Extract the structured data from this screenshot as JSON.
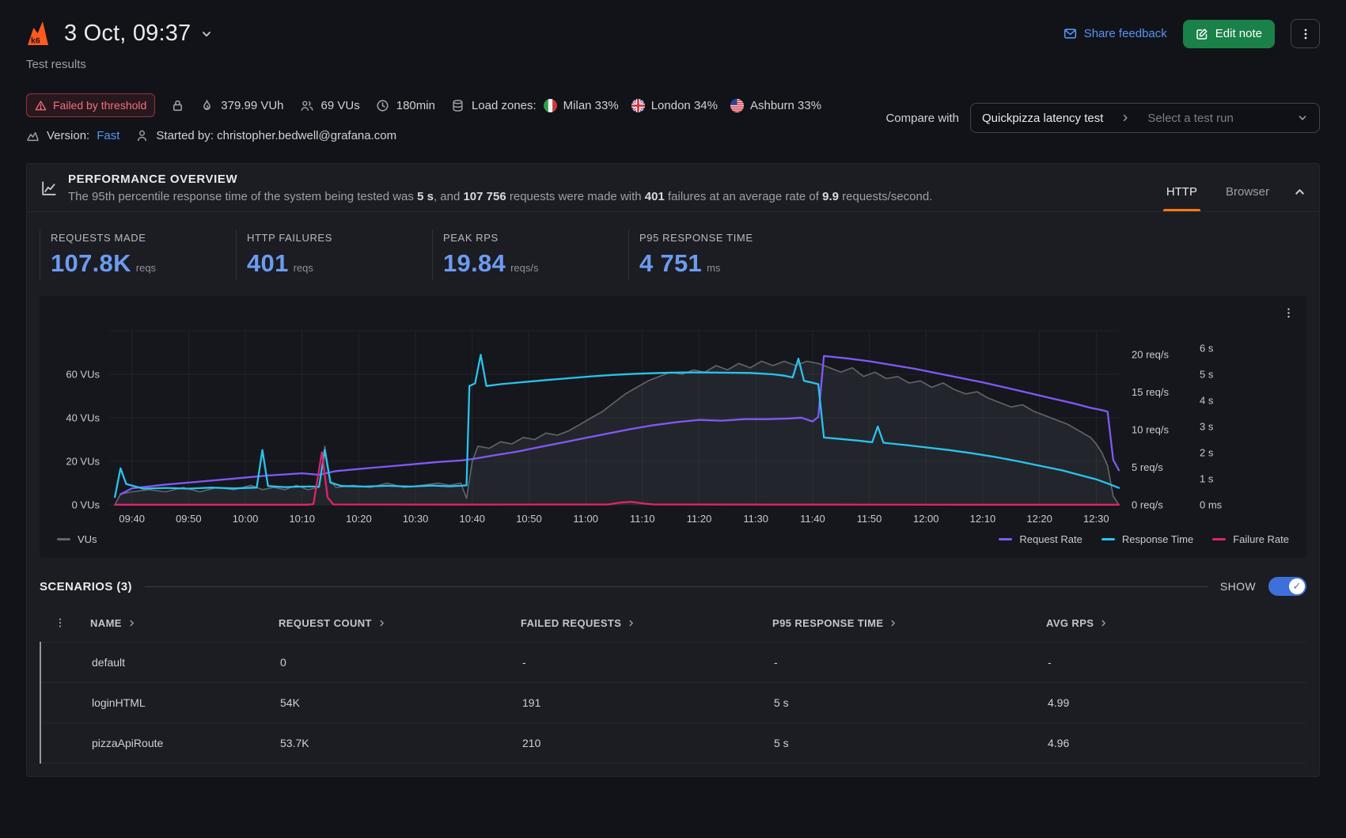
{
  "brand": {
    "logo_text": "k6"
  },
  "header": {
    "title": "3 Oct, 09:37",
    "subtitle": "Test results",
    "share_feedback": "Share feedback",
    "edit_note": "Edit note"
  },
  "meta": {
    "status_badge": "Failed by threshold",
    "vuh": "379.99 VUh",
    "vus": "69 VUs",
    "duration": "180min",
    "load_zones_label": "Load zones:",
    "zones": [
      {
        "name": "Milan",
        "pct": "33%",
        "flag": "italy-flag"
      },
      {
        "name": "London",
        "pct": "34%",
        "flag": "uk-flag"
      },
      {
        "name": "Ashburn",
        "pct": "33%",
        "flag": "us-flag"
      }
    ],
    "version_label": "Version:",
    "version_value": "Fast",
    "started_by": "Started by: christopher.bedwell@grafana.com",
    "compare_label": "Compare with",
    "compare_selected": "Quickpizza latency test",
    "compare_placeholder": "Select a test run"
  },
  "overview": {
    "title": "PERFORMANCE OVERVIEW",
    "description_parts": [
      {
        "text": "The 95th percentile response time of the system being tested was ",
        "bold": false
      },
      {
        "text": "5 s",
        "bold": true
      },
      {
        "text": ", and ",
        "bold": false
      },
      {
        "text": "107 756",
        "bold": true
      },
      {
        "text": " requests were made with ",
        "bold": false
      },
      {
        "text": "401",
        "bold": true
      },
      {
        "text": " failures at an average rate of ",
        "bold": false
      },
      {
        "text": "9.9",
        "bold": true
      },
      {
        "text": " requests/second.",
        "bold": false
      }
    ],
    "tabs": [
      {
        "label": "HTTP",
        "active": true
      },
      {
        "label": "Browser",
        "active": false
      }
    ],
    "stats": [
      {
        "label": "REQUESTS MADE",
        "value": "107.8K",
        "unit": "reqs"
      },
      {
        "label": "HTTP FAILURES",
        "value": "401",
        "unit": "reqs"
      },
      {
        "label": "PEAK RPS",
        "value": "19.84",
        "unit": "reqs/s"
      },
      {
        "label": "P95 RESPONSE TIME",
        "value": "4 751",
        "unit": "ms"
      }
    ]
  },
  "chart_data": {
    "type": "line",
    "x_ticks": [
      "09:40",
      "09:50",
      "10:00",
      "10:10",
      "10:20",
      "10:30",
      "10:40",
      "10:50",
      "11:00",
      "11:10",
      "11:20",
      "11:30",
      "11:40",
      "11:50",
      "12:00",
      "12:10",
      "12:20",
      "12:30"
    ],
    "time_domain_minutes": [
      0,
      178
    ],
    "first_tick_minute": 4,
    "tick_step_minutes": 10,
    "left_axis": {
      "unit": "VUs",
      "ticks": [
        0,
        20,
        40,
        60
      ],
      "max": 80
    },
    "right_axis_rps": {
      "unit": "req/s",
      "ticks": [
        0,
        5,
        10,
        15,
        20
      ]
    },
    "right_axis_time": {
      "tick_labels": [
        "0 ms",
        "1 s",
        "2 s",
        "3 s",
        "4 s",
        "5 s",
        "6 s"
      ]
    },
    "legend_left": "VUs",
    "legend_right": [
      "Request Rate",
      "Response Time",
      "Failure Rate"
    ],
    "colors": {
      "vus": "#62656d",
      "vus_fill": "rgba(110,114,125,0.16)",
      "request_rate": "#8159f5",
      "response_time": "#29c3eb",
      "failure_rate": "#e0226e"
    },
    "series": [
      {
        "name": "VUs",
        "axis": "vus",
        "color": "#62656d",
        "fill": true,
        "points": [
          [
            1,
            0
          ],
          [
            2,
            5
          ],
          [
            4,
            6
          ],
          [
            7,
            7
          ],
          [
            10,
            6
          ],
          [
            13,
            8
          ],
          [
            16,
            6
          ],
          [
            19,
            8
          ],
          [
            22,
            7
          ],
          [
            25,
            9
          ],
          [
            27,
            7
          ],
          [
            29,
            8
          ],
          [
            31,
            7
          ],
          [
            33,
            9
          ],
          [
            35,
            7
          ],
          [
            37,
            8
          ],
          [
            38,
            27
          ],
          [
            39,
            11
          ],
          [
            40,
            8
          ],
          [
            43,
            9
          ],
          [
            46,
            8
          ],
          [
            49,
            10
          ],
          [
            52,
            8
          ],
          [
            55,
            9
          ],
          [
            58,
            10
          ],
          [
            60,
            9
          ],
          [
            62,
            10
          ],
          [
            63,
            3
          ],
          [
            64,
            20
          ],
          [
            65,
            27
          ],
          [
            67,
            26
          ],
          [
            69,
            29
          ],
          [
            71,
            28
          ],
          [
            73,
            31
          ],
          [
            75,
            30
          ],
          [
            77,
            33
          ],
          [
            79,
            32
          ],
          [
            81,
            34
          ],
          [
            83,
            37
          ],
          [
            85,
            40
          ],
          [
            87,
            43
          ],
          [
            89,
            47
          ],
          [
            91,
            51
          ],
          [
            93,
            54
          ],
          [
            95,
            57
          ],
          [
            97,
            59
          ],
          [
            99,
            61
          ],
          [
            101,
            60
          ],
          [
            103,
            62
          ],
          [
            105,
            61
          ],
          [
            107,
            64
          ],
          [
            109,
            62
          ],
          [
            111,
            65
          ],
          [
            113,
            63
          ],
          [
            115,
            66
          ],
          [
            117,
            64
          ],
          [
            119,
            66
          ],
          [
            121,
            64
          ],
          [
            123,
            66
          ],
          [
            125,
            65
          ],
          [
            127,
            63
          ],
          [
            129,
            61
          ],
          [
            131,
            63
          ],
          [
            133,
            59
          ],
          [
            135,
            61
          ],
          [
            137,
            58
          ],
          [
            139,
            59
          ],
          [
            141,
            56
          ],
          [
            143,
            57
          ],
          [
            145,
            54
          ],
          [
            147,
            56
          ],
          [
            149,
            53
          ],
          [
            151,
            51
          ],
          [
            153,
            52
          ],
          [
            155,
            49
          ],
          [
            157,
            47
          ],
          [
            159,
            45
          ],
          [
            161,
            46
          ],
          [
            163,
            43
          ],
          [
            165,
            41
          ],
          [
            167,
            39
          ],
          [
            169,
            37
          ],
          [
            171,
            34
          ],
          [
            173,
            31
          ],
          [
            174,
            28
          ],
          [
            175,
            24
          ],
          [
            176,
            18
          ],
          [
            177,
            4
          ],
          [
            178,
            0
          ]
        ]
      },
      {
        "name": "Request Rate",
        "axis": "rps",
        "color": "#8159f5",
        "points": [
          [
            2,
            1.4
          ],
          [
            4,
            2.2
          ],
          [
            10,
            2.7
          ],
          [
            16,
            3.1
          ],
          [
            22,
            3.5
          ],
          [
            28,
            3.9
          ],
          [
            34,
            4.2
          ],
          [
            37,
            4.0
          ],
          [
            40,
            4.5
          ],
          [
            46,
            4.9
          ],
          [
            52,
            5.3
          ],
          [
            58,
            5.7
          ],
          [
            62,
            5.9
          ],
          [
            64,
            6.1
          ],
          [
            68,
            6.6
          ],
          [
            72,
            7.1
          ],
          [
            76,
            7.7
          ],
          [
            80,
            8.3
          ],
          [
            84,
            8.9
          ],
          [
            88,
            9.5
          ],
          [
            92,
            10.1
          ],
          [
            96,
            10.6
          ],
          [
            100,
            11.0
          ],
          [
            104,
            11.3
          ],
          [
            108,
            11.2
          ],
          [
            112,
            11.4
          ],
          [
            116,
            11.4
          ],
          [
            120,
            11.5
          ],
          [
            122,
            11.6
          ],
          [
            124,
            11.1
          ],
          [
            125,
            11.7
          ],
          [
            126,
            19.8
          ],
          [
            130,
            19.5
          ],
          [
            134,
            19.1
          ],
          [
            138,
            18.6
          ],
          [
            142,
            18.1
          ],
          [
            146,
            17.5
          ],
          [
            150,
            16.9
          ],
          [
            154,
            16.3
          ],
          [
            158,
            15.6
          ],
          [
            162,
            14.9
          ],
          [
            166,
            14.2
          ],
          [
            170,
            13.5
          ],
          [
            173,
            12.9
          ],
          [
            175,
            12.6
          ],
          [
            176,
            12.4
          ],
          [
            177,
            6.0
          ],
          [
            178,
            4.6
          ]
        ]
      },
      {
        "name": "Response Time",
        "axis": "sec",
        "color": "#29c3eb",
        "points": [
          [
            1,
            0.3
          ],
          [
            2,
            1.4
          ],
          [
            3,
            0.8
          ],
          [
            6,
            0.62
          ],
          [
            10,
            0.65
          ],
          [
            14,
            0.62
          ],
          [
            18,
            0.66
          ],
          [
            22,
            0.63
          ],
          [
            26,
            0.66
          ],
          [
            27,
            2.1
          ],
          [
            28,
            0.72
          ],
          [
            31,
            0.68
          ],
          [
            34,
            0.7
          ],
          [
            37,
            0.7
          ],
          [
            38,
            2.1
          ],
          [
            39,
            0.85
          ],
          [
            41,
            0.72
          ],
          [
            45,
            0.7
          ],
          [
            49,
            0.73
          ],
          [
            53,
            0.7
          ],
          [
            57,
            0.74
          ],
          [
            60,
            0.71
          ],
          [
            62,
            0.73
          ],
          [
            63,
            0.75
          ],
          [
            63.5,
            4.55
          ],
          [
            64.5,
            4.65
          ],
          [
            65.5,
            5.75
          ],
          [
            66.5,
            4.55
          ],
          [
            69,
            4.62
          ],
          [
            73,
            4.7
          ],
          [
            77,
            4.78
          ],
          [
            81,
            4.85
          ],
          [
            85,
            4.92
          ],
          [
            89,
            4.98
          ],
          [
            93,
            5.02
          ],
          [
            97,
            5.05
          ],
          [
            101,
            5.07
          ],
          [
            105,
            5.07
          ],
          [
            109,
            5.06
          ],
          [
            113,
            5.05
          ],
          [
            117,
            5.0
          ],
          [
            119,
            4.95
          ],
          [
            120.5,
            4.88
          ],
          [
            121.5,
            5.6
          ],
          [
            122.5,
            4.75
          ],
          [
            124,
            4.68
          ],
          [
            125,
            4.62
          ],
          [
            126,
            2.58
          ],
          [
            129,
            2.52
          ],
          [
            132,
            2.46
          ],
          [
            134.5,
            2.4
          ],
          [
            135.5,
            3.0
          ],
          [
            136.5,
            2.38
          ],
          [
            140,
            2.3
          ],
          [
            144,
            2.2
          ],
          [
            148,
            2.1
          ],
          [
            152,
            1.98
          ],
          [
            156,
            1.84
          ],
          [
            160,
            1.68
          ],
          [
            164,
            1.5
          ],
          [
            168,
            1.32
          ],
          [
            171,
            1.15
          ],
          [
            174,
            0.98
          ],
          [
            176,
            0.82
          ],
          [
            178,
            0.65
          ]
        ]
      },
      {
        "name": "Failure Rate",
        "axis": "rps",
        "color": "#e0226e",
        "points": [
          [
            1,
            0.02
          ],
          [
            35,
            0.02
          ],
          [
            36,
            0.1
          ],
          [
            37.5,
            7.0
          ],
          [
            38.5,
            1.0
          ],
          [
            39.5,
            0.05
          ],
          [
            60,
            0.03
          ],
          [
            88,
            0.05
          ],
          [
            90,
            0.3
          ],
          [
            92,
            0.4
          ],
          [
            94,
            0.2
          ],
          [
            96,
            0.05
          ],
          [
            120,
            0.03
          ],
          [
            150,
            0.02
          ],
          [
            178,
            0.02
          ]
        ]
      }
    ]
  },
  "scenarios": {
    "title": "SCENARIOS (3)",
    "show_label": "SHOW",
    "columns": [
      "NAME",
      "REQUEST COUNT",
      "FAILED REQUESTS",
      "P95 RESPONSE TIME",
      "AVG RPS"
    ],
    "rows": [
      {
        "name": "default",
        "request_count": "0",
        "failed_requests": "-",
        "p95": "-",
        "avg_rps": "-"
      },
      {
        "name": "loginHTML",
        "request_count": "54K",
        "failed_requests": "191",
        "p95": "5 s",
        "avg_rps": "4.99"
      },
      {
        "name": "pizzaApiRoute",
        "request_count": "53.7K",
        "failed_requests": "210",
        "p95": "5 s",
        "avg_rps": "4.96"
      }
    ]
  }
}
